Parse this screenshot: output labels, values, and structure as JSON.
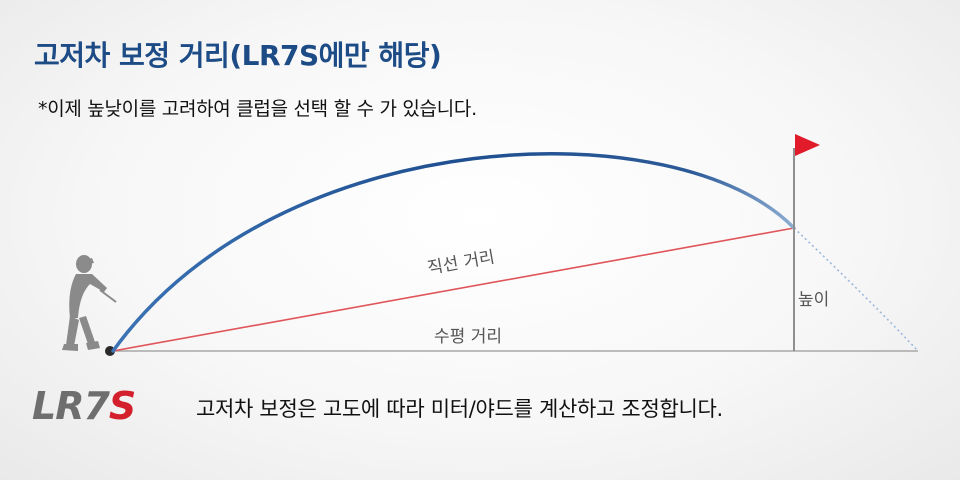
{
  "header": {
    "title": "고저차 보정 거리(LR7S에만 해당)",
    "note": "*이제 높낮이를 고려하여 클럽을 선택 할 수 가 있습니다."
  },
  "diagram": {
    "line_of_sight_label": "직선 거리",
    "horizontal_label": "수평 거리",
    "height_label": "높이"
  },
  "footer": {
    "logo_prefix": "LR7",
    "logo_accent": "S",
    "caption": "고저차 보정은 고도에 따라 미터/야드를 계산하고 조정합니다."
  },
  "colors": {
    "title": "#1c4b86",
    "arc": "#1f4f90",
    "line_of_sight": "#e0545a",
    "flag": "#e11b2a",
    "logo_accent": "#d4202c"
  }
}
